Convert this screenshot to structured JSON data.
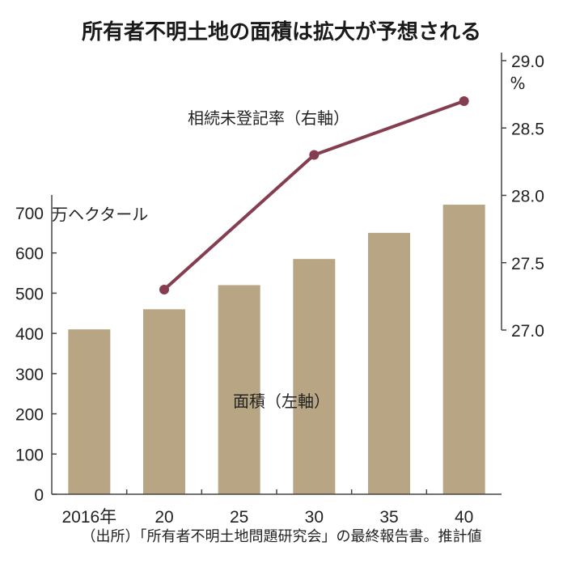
{
  "chart_data": {
    "type": "bar+line",
    "title": "所有者不明土地の面積は拡大が予想される",
    "categories": [
      "2016年",
      "20",
      "25",
      "30",
      "35",
      "40"
    ],
    "series": [
      {
        "name": "面積（左軸）",
        "type": "bar",
        "axis": "left",
        "unit": "万ヘクタール",
        "values": [
          410,
          460,
          520,
          585,
          650,
          720
        ]
      },
      {
        "name": "相続未登記率（右軸）",
        "type": "line",
        "axis": "right",
        "unit": "%",
        "values": [
          null,
          27.3,
          null,
          28.3,
          null,
          28.7
        ]
      }
    ],
    "left_axis": {
      "unit_label": "万ヘクタール",
      "ylim": [
        0,
        700
      ],
      "ticks": [
        0,
        100,
        200,
        300,
        400,
        500,
        600,
        700
      ]
    },
    "right_axis": {
      "unit_label": "%",
      "ylim": [
        27.0,
        29.0
      ],
      "ticks": [
        "27.0",
        "27.5",
        "28.0",
        "28.5",
        "29.0"
      ]
    },
    "source": "（出所）「所有者不明土地問題研究会」の最終報告書。推計値",
    "colors": {
      "bar": "#b8a583",
      "line": "#843e4f",
      "axis": "#444444"
    },
    "grid": false
  }
}
